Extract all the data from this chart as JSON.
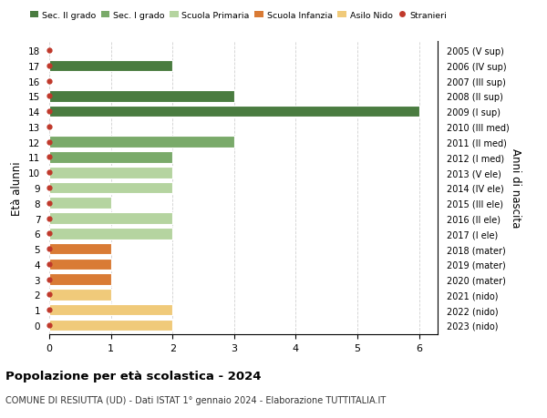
{
  "ages": [
    18,
    17,
    16,
    15,
    14,
    13,
    12,
    11,
    10,
    9,
    8,
    7,
    6,
    5,
    4,
    3,
    2,
    1,
    0
  ],
  "years": [
    "2005 (V sup)",
    "2006 (IV sup)",
    "2007 (III sup)",
    "2008 (II sup)",
    "2009 (I sup)",
    "2010 (III med)",
    "2011 (II med)",
    "2012 (I med)",
    "2013 (V ele)",
    "2014 (IV ele)",
    "2015 (III ele)",
    "2016 (II ele)",
    "2017 (I ele)",
    "2018 (mater)",
    "2019 (mater)",
    "2020 (mater)",
    "2021 (nido)",
    "2022 (nido)",
    "2023 (nido)"
  ],
  "values": [
    0,
    2,
    0,
    3,
    6,
    0,
    3,
    2,
    2,
    2,
    1,
    2,
    2,
    1,
    1,
    1,
    1,
    2,
    2
  ],
  "colors": [
    "#4a7c40",
    "#4a7c40",
    "#4a7c40",
    "#4a7c40",
    "#4a7c40",
    "#7aaa6a",
    "#7aaa6a",
    "#7aaa6a",
    "#b5d4a0",
    "#b5d4a0",
    "#b5d4a0",
    "#b5d4a0",
    "#b5d4a0",
    "#d97b35",
    "#d97b35",
    "#d97b35",
    "#f0ca7a",
    "#f0ca7a",
    "#f0ca7a"
  ],
  "red_dot_color": "#c0392b",
  "background_color": "#ffffff",
  "grid_color": "#d0d0d0",
  "xlim": [
    0,
    6.3
  ],
  "title": "Popolazione per età scolastica - 2024",
  "subtitle": "COMUNE DI RESIUTTA (UD) - Dati ISTAT 1° gennaio 2024 - Elaborazione TUTTITALIA.IT",
  "ylabel": "Età alunni",
  "ylabel2": "Anni di nascita",
  "legend_labels": [
    "Sec. II grado",
    "Sec. I grado",
    "Scuola Primaria",
    "Scuola Infanzia",
    "Asilo Nido",
    "Stranieri"
  ],
  "legend_colors": [
    "#4a7c40",
    "#7aaa6a",
    "#b5d4a0",
    "#d97b35",
    "#f0ca7a",
    "#c0392b"
  ],
  "bar_height": 0.75
}
